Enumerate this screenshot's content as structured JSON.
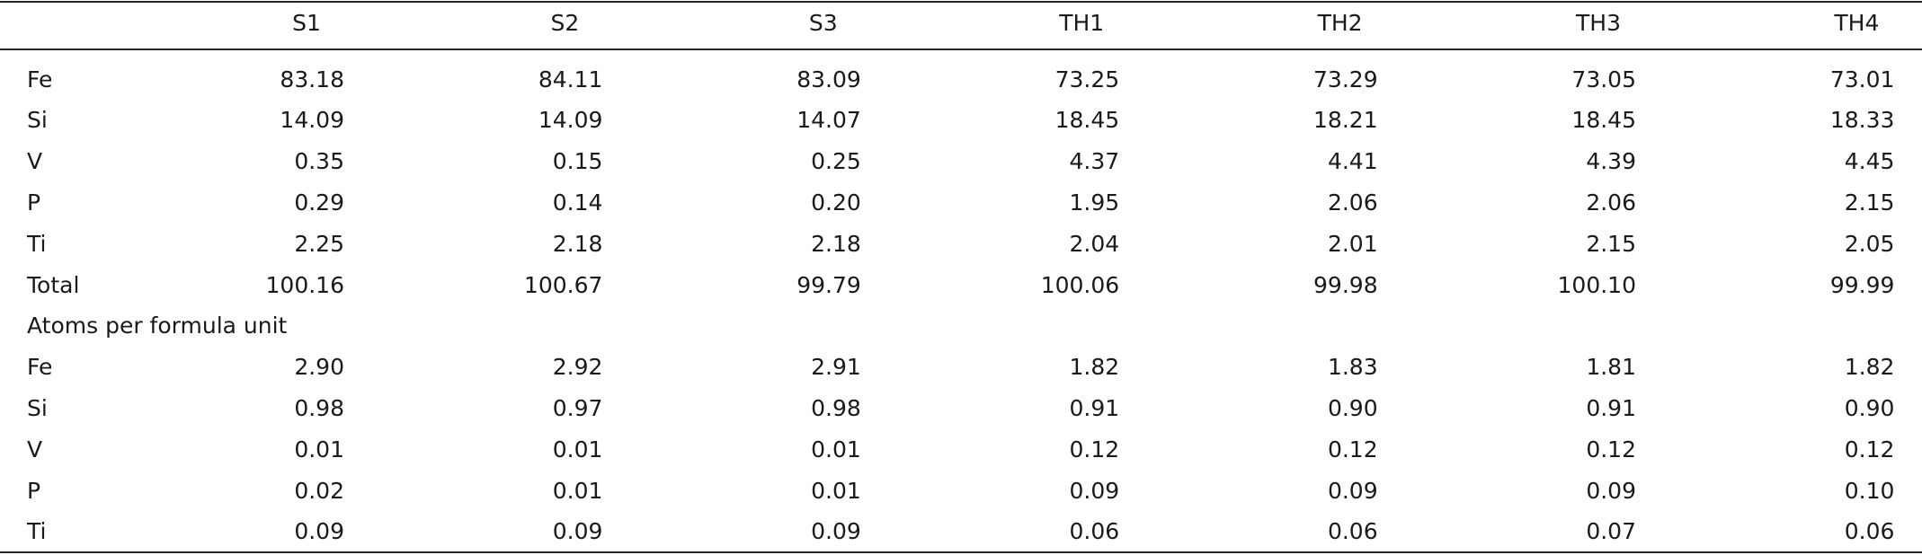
{
  "table": {
    "header": [
      "S1",
      "S2",
      "S3",
      "TH1",
      "TH2",
      "TH3",
      "TH4"
    ],
    "rows": [
      [
        "Fe",
        "83.18",
        "84.11",
        "83.09",
        "73.25",
        "73.29",
        "73.05",
        "73.01"
      ],
      [
        "Si",
        "14.09",
        "14.09",
        "14.07",
        "18.45",
        "18.21",
        "18.45",
        "18.33"
      ],
      [
        "V",
        "0.35",
        "0.15",
        "0.25",
        "4.37",
        "4.41",
        "4.39",
        "4.45"
      ],
      [
        "P",
        "0.29",
        "0.14",
        "0.20",
        "1.95",
        "2.06",
        "2.06",
        "2.15"
      ],
      [
        "Ti",
        "2.25",
        "2.18",
        "2.18",
        "2.04",
        "2.01",
        "2.15",
        "2.05"
      ],
      [
        "Total",
        "100.16",
        "100.67",
        "99.79",
        "100.06",
        "99.98",
        "100.10",
        "99.99"
      ],
      [
        "Atoms per formula unit"
      ],
      [
        "Fe",
        "2.90",
        "2.92",
        "2.91",
        "1.82",
        "1.83",
        "1.81",
        "1.82"
      ],
      [
        "Si",
        "0.98",
        "0.97",
        "0.98",
        "0.91",
        "0.90",
        "0.91",
        "0.90"
      ],
      [
        "V",
        "0.01",
        "0.01",
        "0.01",
        "0.12",
        "0.12",
        "0.12",
        "0.12"
      ],
      [
        "P",
        "0.02",
        "0.01",
        "0.01",
        "0.09",
        "0.09",
        "0.09",
        "0.10"
      ],
      [
        "Ti",
        "0.09",
        "0.09",
        "0.09",
        "0.06",
        "0.06",
        "0.07",
        "0.06"
      ]
    ]
  }
}
